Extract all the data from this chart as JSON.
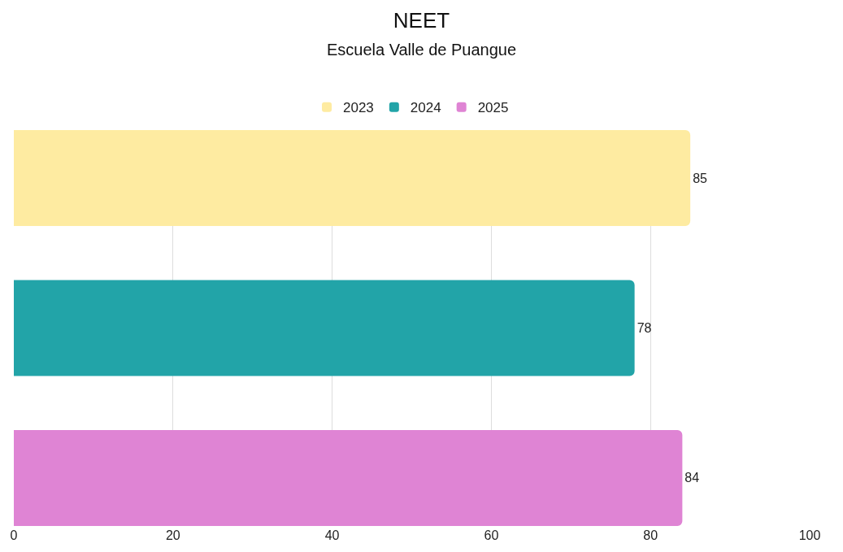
{
  "chart_data": {
    "type": "bar",
    "orientation": "horizontal",
    "title": "NEET",
    "subtitle": "Escuela Valle de Puangue",
    "categories": [
      null
    ],
    "series": [
      {
        "name": "2023",
        "color": "#feeba1",
        "values": [
          85
        ]
      },
      {
        "name": "2024",
        "color": "#22a4a8",
        "values": [
          78
        ]
      },
      {
        "name": "2025",
        "color": "#df84d4",
        "values": [
          84
        ]
      }
    ],
    "xlim": [
      0,
      100
    ],
    "xticks": [
      0,
      20,
      40,
      60,
      80,
      100
    ],
    "grid": "x",
    "legend": "top",
    "data_labels": true
  }
}
